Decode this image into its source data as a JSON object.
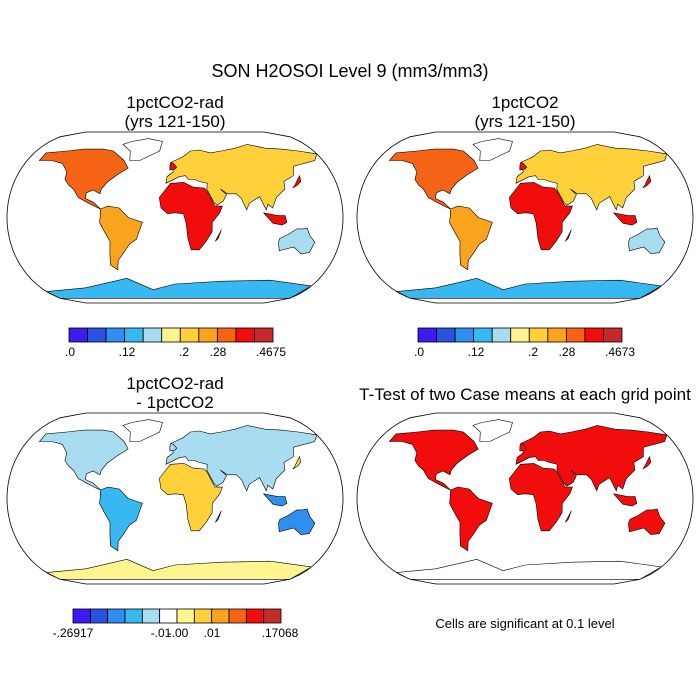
{
  "figure_title": "SON H2OSOI Level 9 (mm3/mm3)",
  "panels": [
    {
      "title_line1": "1pctCO2-rad",
      "title_line2": "(yrs 121-150)",
      "type": "mean",
      "colorbar": {
        "colors": [
          "#3b1bf0",
          "#2a52e0",
          "#2f8ef0",
          "#38b8f0",
          "#a8dcf0",
          "#fff590",
          "#fed13a",
          "#f9a41c",
          "#f56414",
          "#f20d0d",
          "#c42a2a"
        ],
        "labels": [
          ".0",
          ".12",
          ".2",
          ".28",
          ".4675"
        ]
      }
    },
    {
      "title_line1": "1pctCO2",
      "title_line2": "(yrs 121-150)",
      "type": "mean",
      "colorbar": {
        "colors": [
          "#3b1bf0",
          "#2a52e0",
          "#2f8ef0",
          "#38b8f0",
          "#a8dcf0",
          "#fff590",
          "#fed13a",
          "#f9a41c",
          "#f56414",
          "#f20d0d",
          "#c42a2a"
        ],
        "labels": [
          ".0",
          ".12",
          ".2",
          ".28",
          ".4673"
        ]
      }
    },
    {
      "title_line1": "1pctCO2-rad",
      "title_line2": "- 1pctCO2",
      "type": "difference",
      "colorbar": {
        "colors": [
          "#3b1bf0",
          "#2a52e0",
          "#2f8ef0",
          "#38b8f0",
          "#a8dcf0",
          "#ffffff",
          "#fff590",
          "#fed13a",
          "#f9a41c",
          "#f56414",
          "#f20d0d",
          "#c42a2a"
        ],
        "labels": [
          "-.26917",
          "-.01",
          "-.00",
          ".01",
          ".17068"
        ]
      }
    },
    {
      "title_line1": "T-Test of two Case means at each grid point",
      "title_line2": "",
      "type": "significance",
      "note": "Cells are significant at 0.1 level"
    }
  ]
}
